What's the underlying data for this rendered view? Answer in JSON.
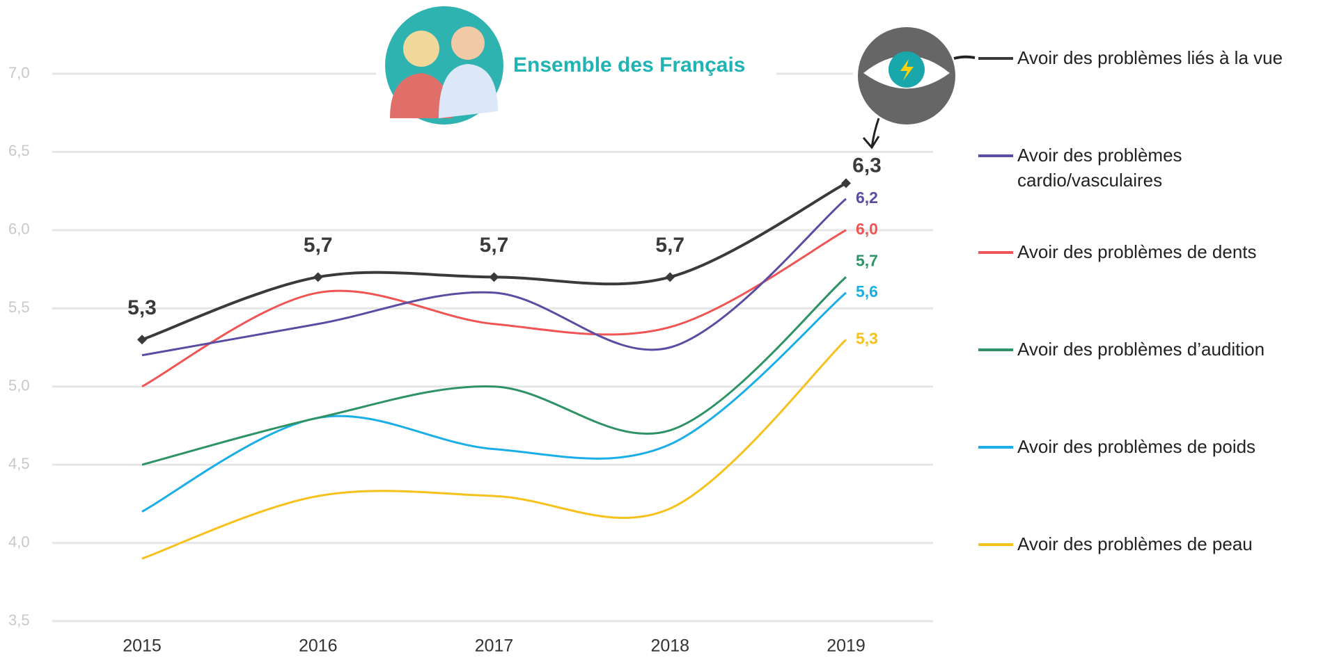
{
  "chart_data": {
    "type": "line",
    "title": "Ensemble des Français",
    "categories": [
      "2015",
      "2016",
      "2017",
      "2018",
      "2019"
    ],
    "series": [
      {
        "name": "Avoir des problèmes liés à la vue",
        "color": "#3a3a3a",
        "values": [
          5.3,
          5.7,
          5.7,
          5.7,
          6.3
        ],
        "value_labels": [
          "5,3",
          "5,7",
          "5,7",
          "5,7",
          "6,3"
        ],
        "marker": "diamond"
      },
      {
        "name": "Avoir des problèmes cardio/vasculaires",
        "color": "#5b4ca3",
        "values": [
          5.2,
          5.4,
          5.6,
          5.25,
          6.2
        ],
        "value_labels": [
          null,
          null,
          null,
          null,
          "6,2"
        ]
      },
      {
        "name": "Avoir des problèmes de dents",
        "color": "#f05454",
        "values": [
          5.0,
          5.6,
          5.4,
          5.38,
          6.0
        ],
        "value_labels": [
          null,
          null,
          null,
          null,
          "6,0"
        ]
      },
      {
        "name": "Avoir des problèmes d’audition",
        "color": "#2e9364",
        "values": [
          4.5,
          4.8,
          5.0,
          4.72,
          5.7
        ],
        "value_labels": [
          null,
          null,
          null,
          null,
          "5,7"
        ]
      },
      {
        "name": "Avoir des problèmes de poids",
        "color": "#1aaee8",
        "values": [
          4.2,
          4.8,
          4.6,
          4.63,
          5.6
        ],
        "value_labels": [
          null,
          null,
          null,
          null,
          "5,6"
        ]
      },
      {
        "name": "Avoir des problèmes de peau",
        "color": "#f7c11b",
        "values": [
          3.9,
          4.3,
          4.3,
          4.22,
          5.3
        ],
        "value_labels": [
          null,
          null,
          null,
          null,
          "5,3"
        ]
      }
    ],
    "ylim": [
      3.5,
      7.0
    ],
    "yticks": [
      {
        "value": 3.5,
        "label": "3,5"
      },
      {
        "value": 4.0,
        "label": "4,0"
      },
      {
        "value": 4.5,
        "label": "4,5"
      },
      {
        "value": 5.0,
        "label": "5,0"
      },
      {
        "value": 5.5,
        "label": "5,5"
      },
      {
        "value": 6.0,
        "label": "6,0"
      },
      {
        "value": 6.5,
        "label": "6,5"
      },
      {
        "value": 7.0,
        "label": "7,0"
      }
    ],
    "grid": true,
    "legend": "right"
  }
}
